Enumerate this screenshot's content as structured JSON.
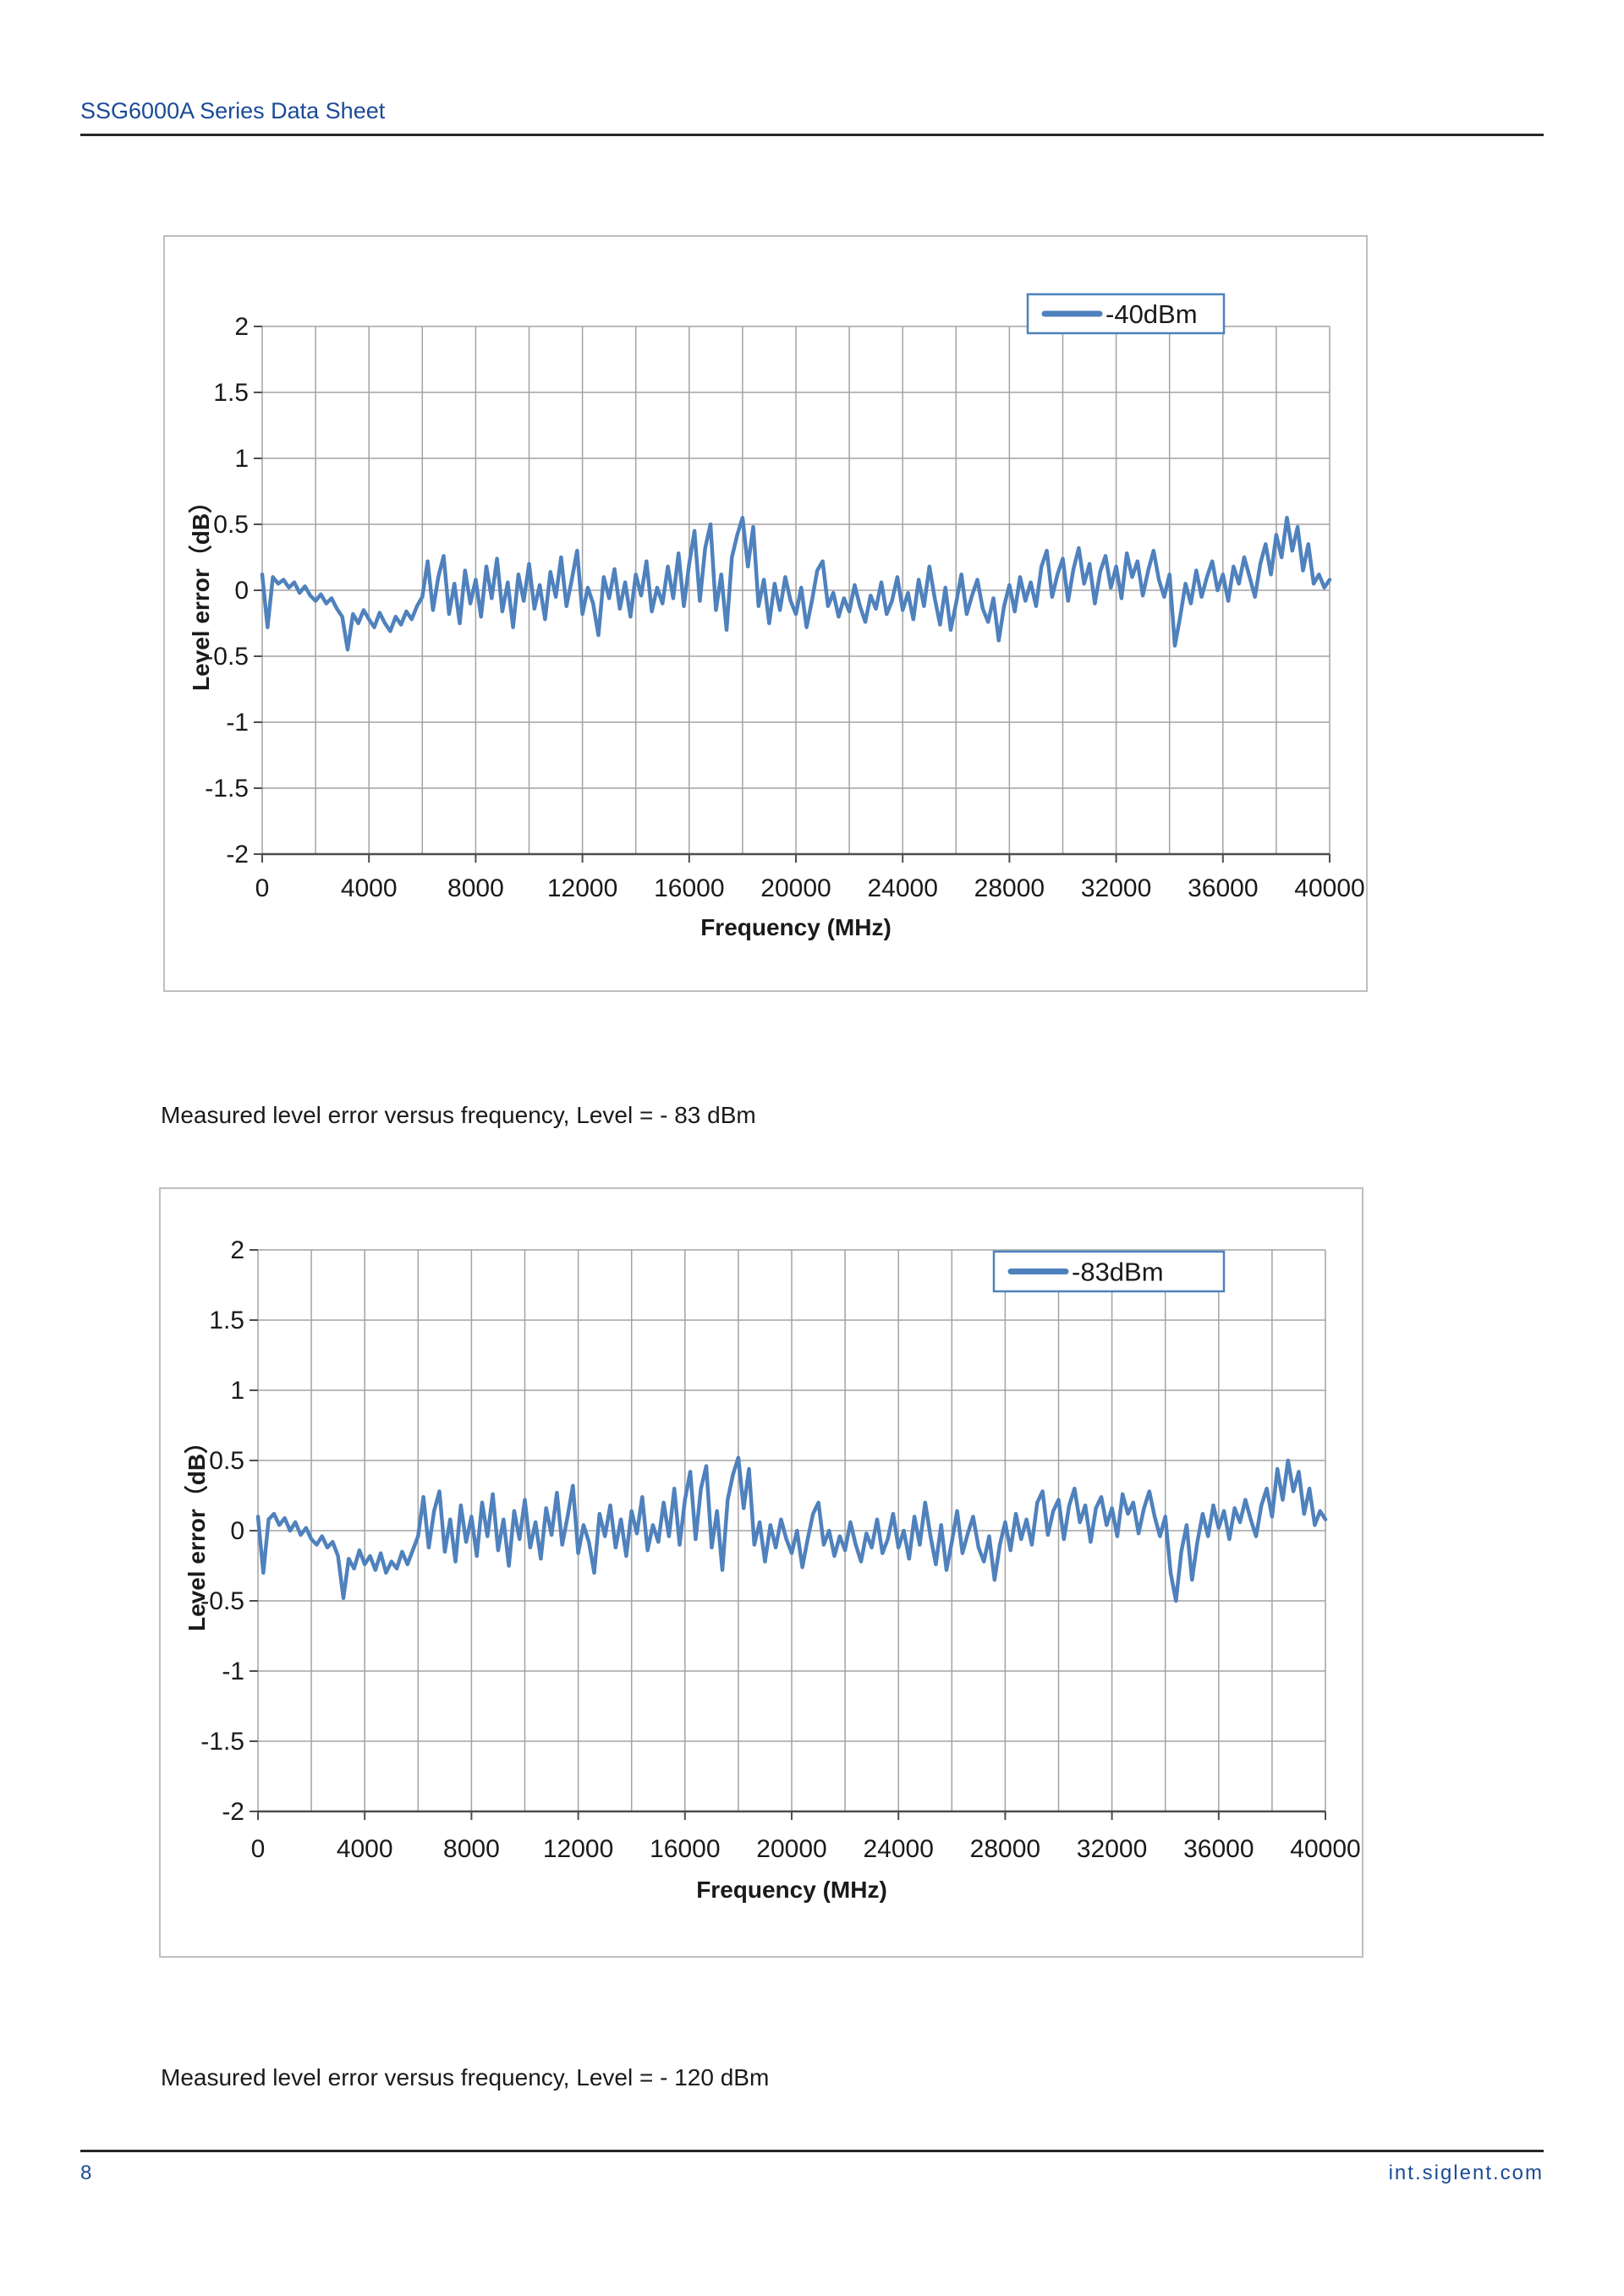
{
  "page": {
    "header": {
      "title": "SSG6000A Series Data Sheet"
    },
    "captions": [
      "Measured level error versus frequency, Level = - 83 dBm",
      "Measured level error versus frequency, Level = - 120 dBm"
    ],
    "footer": {
      "page_number": "8",
      "website": "int.siglent.com"
    }
  },
  "colors": {
    "header_blue": "#1B4A97",
    "trace_blue": "#4F81BD",
    "grid_gray": "#A3A3A3",
    "axis_dark": "#4D4D4D",
    "text_dark": "#1A1A1A",
    "panel_border": "#BFBFBF"
  },
  "chart_data": [
    {
      "type": "line",
      "legend": "-40dBm",
      "legend_position": "top-right",
      "xlabel": "Frequency (MHz)",
      "ylabel": "Level error（dB）",
      "xlim": [
        0,
        40000
      ],
      "ylim": [
        -2,
        2
      ],
      "x_major_step": 4000,
      "x_minor_step": 2000,
      "y_tick_step": 0.5,
      "x_tick_labels": [
        "0",
        "4000",
        "8000",
        "12000",
        "16000",
        "20000",
        "24000",
        "28000",
        "32000",
        "36000",
        "40000"
      ],
      "y_tick_labels": [
        "2",
        "1.5",
        "1",
        "0.5",
        "0",
        "-0.5",
        "-1",
        "-1.5",
        "-2"
      ],
      "grid": true,
      "x_step_mhz": 200,
      "values": [
        0.12,
        -0.28,
        0.1,
        0.05,
        0.08,
        0.02,
        0.06,
        -0.02,
        0.03,
        -0.04,
        -0.08,
        -0.03,
        -0.1,
        -0.06,
        -0.14,
        -0.2,
        -0.45,
        -0.18,
        -0.25,
        -0.15,
        -0.22,
        -0.28,
        -0.17,
        -0.25,
        -0.31,
        -0.2,
        -0.26,
        -0.16,
        -0.22,
        -0.12,
        -0.05,
        0.22,
        -0.15,
        0.1,
        0.26,
        -0.18,
        0.05,
        -0.25,
        0.15,
        -0.1,
        0.08,
        -0.2,
        0.18,
        -0.06,
        0.24,
        -0.16,
        0.06,
        -0.28,
        0.12,
        -0.08,
        0.2,
        -0.14,
        0.04,
        -0.22,
        0.14,
        -0.05,
        0.25,
        -0.12,
        0.08,
        0.3,
        -0.18,
        0.02,
        -0.1,
        -0.34,
        0.1,
        -0.06,
        0.16,
        -0.14,
        0.06,
        -0.2,
        0.12,
        -0.04,
        0.22,
        -0.16,
        0.02,
        -0.1,
        0.18,
        -0.06,
        0.28,
        -0.12,
        0.2,
        0.45,
        -0.08,
        0.32,
        0.5,
        -0.15,
        0.12,
        -0.3,
        0.25,
        0.42,
        0.55,
        0.18,
        0.48,
        -0.12,
        0.08,
        -0.25,
        0.05,
        -0.15,
        0.1,
        -0.08,
        -0.18,
        0.02,
        -0.28,
        -0.08,
        0.15,
        0.22,
        -0.12,
        -0.02,
        -0.2,
        -0.06,
        -0.16,
        0.04,
        -0.12,
        -0.24,
        -0.04,
        -0.14,
        0.06,
        -0.18,
        -0.08,
        0.1,
        -0.15,
        -0.02,
        -0.22,
        0.08,
        -0.12,
        0.18,
        -0.06,
        -0.26,
        0.02,
        -0.3,
        -0.1,
        0.12,
        -0.18,
        -0.04,
        0.08,
        -0.14,
        -0.24,
        -0.06,
        -0.38,
        -0.12,
        0.04,
        -0.16,
        0.1,
        -0.08,
        0.06,
        -0.12,
        0.18,
        0.3,
        -0.05,
        0.12,
        0.24,
        -0.08,
        0.16,
        0.32,
        0.05,
        0.2,
        -0.1,
        0.14,
        0.26,
        0.02,
        0.18,
        -0.06,
        0.28,
        0.1,
        0.22,
        -0.04,
        0.15,
        0.3,
        0.08,
        -0.05,
        0.12,
        -0.42,
        -0.2,
        0.05,
        -0.1,
        0.15,
        -0.05,
        0.1,
        0.22,
        0.0,
        0.12,
        -0.08,
        0.18,
        0.05,
        0.25,
        0.1,
        -0.05,
        0.2,
        0.35,
        0.12,
        0.42,
        0.25,
        0.55,
        0.3,
        0.48,
        0.15,
        0.35,
        0.05,
        0.12,
        0.02,
        0.08
      ]
    },
    {
      "type": "line",
      "legend": "-83dBm",
      "legend_position": "top-right",
      "xlabel": "Frequency (MHz)",
      "ylabel": "Level error（dB）",
      "xlim": [
        0,
        40000
      ],
      "ylim": [
        -2,
        2
      ],
      "x_major_step": 4000,
      "x_minor_step": 2000,
      "y_tick_step": 0.5,
      "x_tick_labels": [
        "0",
        "4000",
        "8000",
        "12000",
        "16000",
        "20000",
        "24000",
        "28000",
        "32000",
        "36000",
        "40000"
      ],
      "y_tick_labels": [
        "2",
        "1.5",
        "1",
        "0.5",
        "0",
        "-0.5",
        "-1",
        "-1.5",
        "-2"
      ],
      "grid": true,
      "x_step_mhz": 200,
      "values": [
        0.1,
        -0.3,
        0.08,
        0.12,
        0.04,
        0.09,
        0.0,
        0.06,
        -0.03,
        0.02,
        -0.06,
        -0.1,
        -0.04,
        -0.12,
        -0.08,
        -0.18,
        -0.48,
        -0.2,
        -0.27,
        -0.14,
        -0.24,
        -0.18,
        -0.28,
        -0.16,
        -0.3,
        -0.22,
        -0.27,
        -0.15,
        -0.24,
        -0.14,
        -0.04,
        0.24,
        -0.12,
        0.14,
        0.28,
        -0.15,
        0.08,
        -0.22,
        0.18,
        -0.08,
        0.1,
        -0.18,
        0.2,
        -0.04,
        0.26,
        -0.14,
        0.08,
        -0.25,
        0.14,
        -0.06,
        0.22,
        -0.12,
        0.06,
        -0.2,
        0.16,
        -0.03,
        0.27,
        -0.1,
        0.1,
        0.32,
        -0.16,
        0.04,
        -0.08,
        -0.3,
        0.12,
        -0.04,
        0.18,
        -0.12,
        0.08,
        -0.18,
        0.14,
        -0.02,
        0.24,
        -0.14,
        0.04,
        -0.08,
        0.2,
        -0.04,
        0.3,
        -0.1,
        0.22,
        0.42,
        -0.06,
        0.3,
        0.46,
        -0.12,
        0.14,
        -0.28,
        0.22,
        0.4,
        0.52,
        0.16,
        0.44,
        -0.1,
        0.06,
        -0.22,
        0.04,
        -0.12,
        0.08,
        -0.06,
        -0.16,
        0.0,
        -0.26,
        -0.06,
        0.12,
        0.2,
        -0.1,
        0.0,
        -0.18,
        -0.04,
        -0.14,
        0.06,
        -0.1,
        -0.22,
        -0.02,
        -0.12,
        0.08,
        -0.16,
        -0.06,
        0.12,
        -0.12,
        0.0,
        -0.2,
        0.1,
        -0.1,
        0.2,
        -0.04,
        -0.24,
        0.04,
        -0.28,
        -0.08,
        0.14,
        -0.16,
        -0.02,
        0.1,
        -0.12,
        -0.22,
        -0.04,
        -0.35,
        -0.1,
        0.06,
        -0.14,
        0.12,
        -0.06,
        0.08,
        -0.1,
        0.2,
        0.28,
        -0.03,
        0.14,
        0.22,
        -0.06,
        0.18,
        0.3,
        0.06,
        0.18,
        -0.08,
        0.16,
        0.24,
        0.04,
        0.16,
        -0.04,
        0.26,
        0.12,
        0.2,
        -0.02,
        0.16,
        0.28,
        0.1,
        -0.04,
        0.1,
        -0.3,
        -0.5,
        -0.15,
        0.04,
        -0.35,
        -0.08,
        0.12,
        -0.04,
        0.18,
        0.02,
        0.14,
        -0.06,
        0.16,
        0.06,
        0.22,
        0.08,
        -0.04,
        0.18,
        0.3,
        0.1,
        0.44,
        0.22,
        0.5,
        0.28,
        0.42,
        0.12,
        0.3,
        0.04,
        0.14,
        0.08
      ]
    }
  ]
}
